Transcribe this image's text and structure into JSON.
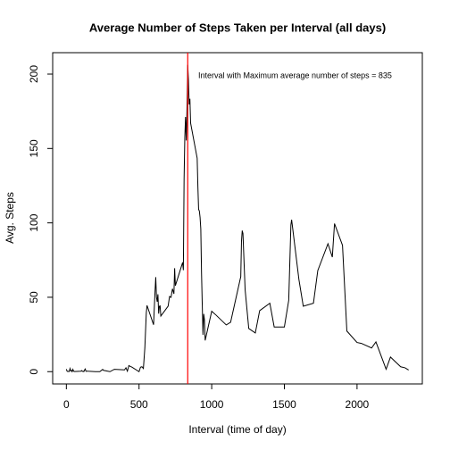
{
  "chart_data": {
    "type": "line",
    "title": "Average Number of Steps Taken per Interval (all days)",
    "x_label": "Interval (time of day)",
    "y_label": "Avg. Steps",
    "annotation": "Interval with Maximum average number of steps =  835",
    "max_interval": 835,
    "vline_color": "#ff0000",
    "x": [
      0,
      5,
      10,
      15,
      20,
      25,
      30,
      35,
      40,
      45,
      50,
      55,
      100,
      105,
      110,
      115,
      120,
      125,
      130,
      135,
      140,
      145,
      150,
      200,
      230,
      250,
      255,
      300,
      330,
      400,
      410,
      420,
      430,
      440,
      450,
      500,
      510,
      520,
      530,
      540,
      550,
      555,
      600,
      610,
      615,
      620,
      625,
      630,
      635,
      640,
      645,
      650,
      700,
      710,
      720,
      730,
      740,
      745,
      750,
      800,
      805,
      810,
      815,
      820,
      825,
      830,
      835,
      840,
      845,
      850,
      855,
      900,
      905,
      910,
      915,
      920,
      925,
      930,
      935,
      940,
      945,
      950,
      955,
      1000,
      1030,
      1100,
      1130,
      1200,
      1205,
      1210,
      1215,
      1230,
      1255,
      1300,
      1330,
      1400,
      1430,
      1500,
      1530,
      1545,
      1550,
      1600,
      1630,
      1700,
      1730,
      1800,
      1830,
      1845,
      1900,
      1930,
      2000,
      2030,
      2100,
      2130,
      2200,
      2230,
      2300,
      2330,
      2355
    ],
    "series": [
      {
        "name": "Avg. Steps",
        "color": "#000000",
        "values": [
          1.7,
          0.3,
          0.1,
          0.2,
          0.1,
          2.1,
          0.5,
          0.9,
          0,
          1.5,
          0.3,
          0.1,
          0.3,
          0.7,
          0.2,
          0.3,
          0,
          1.1,
          1.8,
          0.2,
          0.2,
          0.4,
          0.3,
          0,
          0,
          1.5,
          0.9,
          0,
          1.6,
          1.2,
          2.6,
          0.3,
          4.1,
          3.5,
          3.1,
          0,
          3,
          3.3,
          2.1,
          16,
          39.5,
          44.5,
          31.5,
          53.8,
          63.5,
          50,
          47,
          52,
          39,
          44,
          44.2,
          37.4,
          44,
          50.5,
          49.9,
          55.7,
          52.3,
          69.5,
          57.8,
          73.4,
          68.2,
          129.4,
          157.5,
          171.2,
          155.4,
          177.3,
          206.2,
          195.9,
          179.6,
          183.4,
          167,
          143.5,
          124,
          109,
          108,
          103.7,
          95.9,
          66.2,
          45.2,
          24.8,
          38.8,
          35,
          21,
          40.6,
          38,
          31.4,
          33.2,
          63.9,
          87.7,
          94.8,
          92.8,
          55,
          29,
          26,
          41,
          46,
          30,
          30,
          48,
          98.7,
          102.1,
          62,
          44,
          46,
          68,
          86,
          77,
          99.5,
          84.9,
          27.3,
          19.6,
          19,
          15.9,
          20,
          1.6,
          9.8,
          3.3,
          2.6,
          1.1
        ]
      }
    ],
    "xlim": [
      -94.2,
      2449.2
    ],
    "ylim": [
      -8.25,
      214.4
    ],
    "xticks": [
      0,
      500,
      1000,
      1500,
      2000
    ],
    "yticks": [
      0,
      50,
      100,
      150,
      200
    ]
  }
}
